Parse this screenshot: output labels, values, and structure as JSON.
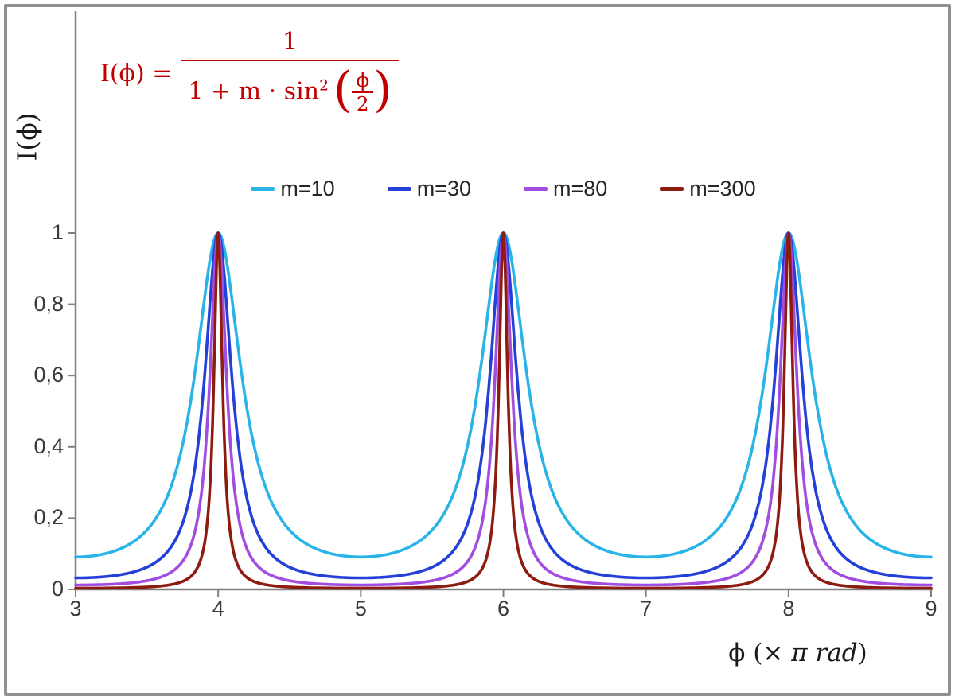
{
  "formula": {
    "prefix": "I(ϕ) =",
    "numerator": "1",
    "denominator_text": "1 + m · sin",
    "exponent": "2",
    "open_paren": "(",
    "close_paren": ")",
    "inner_numerator": "ϕ",
    "inner_denominator": "2",
    "color": "#c00000"
  },
  "chart_data": {
    "type": "line",
    "title": "",
    "annotation_formula": "I(ϕ) = 1 / (1 + m·sin²(ϕ/2))",
    "function": "I(x) = 1 / (1 + m·sin²(π·x/2)), x in units of π rad",
    "xlabel": "ϕ (× π rad)",
    "xlabel_parts": [
      "ϕ  (× ",
      "π rad",
      ")"
    ],
    "ylabel": "I(ϕ)",
    "x_range": [
      3,
      9
    ],
    "y_range": [
      0,
      1.62
    ],
    "x_ticks": [
      3,
      4,
      5,
      6,
      7,
      8,
      9
    ],
    "y_ticks": [
      {
        "value": 0,
        "label": "0"
      },
      {
        "value": 0.2,
        "label": "0,2"
      },
      {
        "value": 0.4,
        "label": "0,4"
      },
      {
        "value": 0.6,
        "label": "0,6"
      },
      {
        "value": 0.8,
        "label": "0,8"
      },
      {
        "value": 1,
        "label": "1"
      }
    ],
    "grid": false,
    "axis_color": "#808080",
    "tick_label_color": "#3a3a3a",
    "legend_position": "top-center",
    "peaks_at_x": [
      4,
      6,
      8
    ],
    "peak_value": 1,
    "series": [
      {
        "name": "m=10",
        "m": 10,
        "color": "#29b4e8",
        "min_value": 0.0909
      },
      {
        "name": "m=30",
        "m": 30,
        "color": "#2340d9",
        "min_value": 0.0323
      },
      {
        "name": "m=80",
        "m": 80,
        "color": "#a14de0",
        "min_value": 0.0123
      },
      {
        "name": "m=300",
        "m": 300,
        "color": "#8e1b10",
        "min_value": 0.0033
      }
    ]
  }
}
